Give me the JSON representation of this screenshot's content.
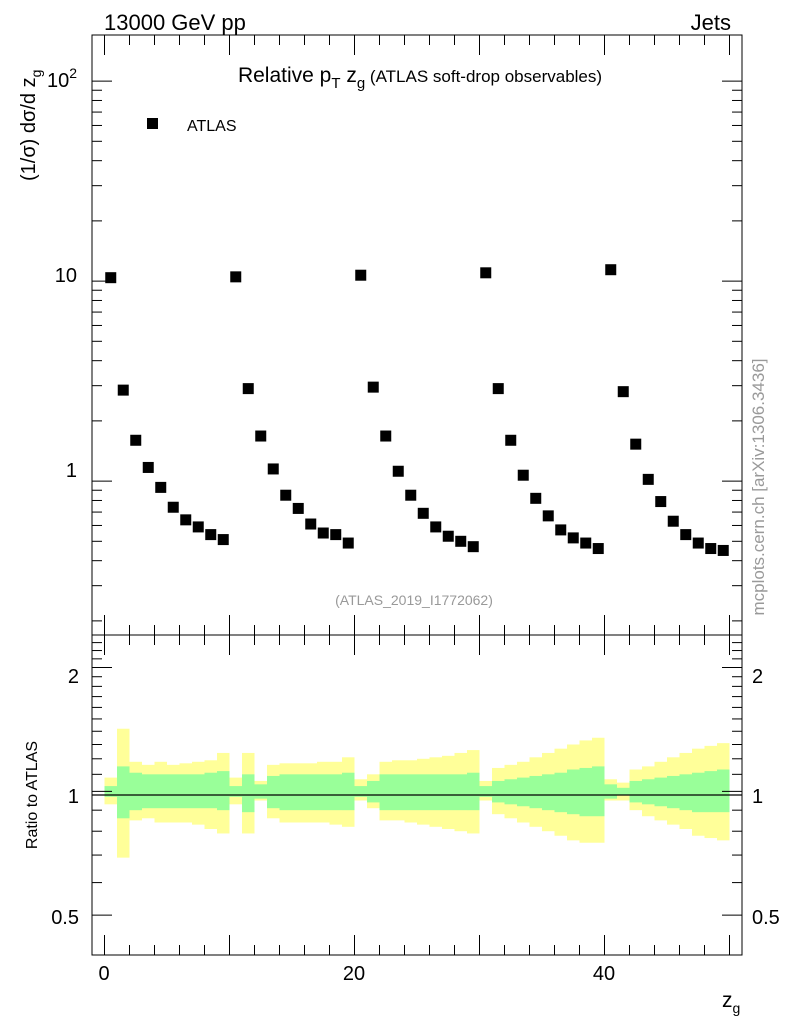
{
  "header": {
    "energy_label": "13000 GeV pp",
    "category_label": "Jets",
    "watermark": "mcplots.cern.ch [arXiv:1306.3436]"
  },
  "main_plot": {
    "title_prefix": "Relative p",
    "title_sub_1": "T",
    "title_mid": " z",
    "title_sub_2": "g",
    "title_suffix": " (ATLAS soft-drop observables)",
    "ylabel_main": "(1/σ) dσ/d z",
    "ylabel_sub": "g",
    "analysis_id": "(ATLAS_2019_I1772062)",
    "legend_label": "ATLAS",
    "ytick_labels": [
      "1",
      "10"
    ],
    "ytick_top_base": "10",
    "ytick_top_exp": "2"
  },
  "ratio_plot": {
    "ylabel": "Ratio to ATLAS",
    "ytick_labels": [
      "0.5",
      "1",
      "2"
    ],
    "xtick_labels": [
      "0",
      "20",
      "40"
    ],
    "xlabel_main": "z",
    "xlabel_sub": "g"
  },
  "colors": {
    "marker": "#000000",
    "band_inner": "#99ff99",
    "band_outer": "#ffff99",
    "line": "#000000"
  },
  "chart_data": [
    {
      "type": "scatter",
      "title": "Relative pT zg (ATLAS soft-drop observables)",
      "xlabel": "zg",
      "ylabel": "(1/σ) dσ/d zg",
      "yscale": "log",
      "xlim": [
        -1,
        51
      ],
      "ylim": [
        0.17,
        170
      ],
      "series": [
        {
          "name": "ATLAS",
          "x": [
            0.5,
            1.5,
            2.5,
            3.5,
            4.5,
            5.5,
            6.5,
            7.5,
            8.5,
            9.5,
            10.5,
            11.5,
            12.5,
            13.5,
            14.5,
            15.5,
            16.5,
            17.5,
            18.5,
            19.5,
            20.5,
            21.5,
            22.5,
            23.5,
            24.5,
            25.5,
            26.5,
            27.5,
            28.5,
            29.5,
            30.5,
            31.5,
            32.5,
            33.5,
            34.5,
            35.5,
            36.5,
            37.5,
            38.5,
            39.5,
            40.5,
            41.5,
            42.5,
            43.5,
            44.5,
            45.5,
            46.5,
            47.5,
            48.5,
            49.5
          ],
          "y": [
            10.4,
            2.85,
            1.6,
            1.17,
            0.93,
            0.74,
            0.64,
            0.59,
            0.54,
            0.51,
            10.5,
            2.9,
            1.68,
            1.15,
            0.85,
            0.73,
            0.61,
            0.55,
            0.54,
            0.49,
            10.7,
            2.95,
            1.68,
            1.12,
            0.85,
            0.69,
            0.59,
            0.53,
            0.5,
            0.47,
            11.0,
            2.9,
            1.6,
            1.07,
            0.82,
            0.67,
            0.57,
            0.52,
            0.49,
            0.46,
            11.4,
            2.8,
            1.53,
            1.02,
            0.79,
            0.63,
            0.54,
            0.49,
            0.46,
            0.45
          ]
        }
      ]
    },
    {
      "type": "area",
      "title": "Ratio to ATLAS",
      "xlabel": "zg",
      "ylabel": "Ratio to ATLAS",
      "yscale": "log",
      "xlim": [
        -1,
        51
      ],
      "ylim": [
        0.4,
        2.4
      ],
      "reference_line": 1,
      "series": [
        {
          "name": "Stat. uncertainty (green)",
          "x": [
            0.5,
            1.5,
            2.5,
            3.5,
            4.5,
            5.5,
            6.5,
            7.5,
            8.5,
            9.5,
            10.5,
            11.5,
            12.5,
            13.5,
            14.5,
            15.5,
            16.5,
            17.5,
            18.5,
            19.5,
            20.5,
            21.5,
            22.5,
            23.5,
            24.5,
            25.5,
            26.5,
            27.5,
            28.5,
            29.5,
            30.5,
            31.5,
            32.5,
            33.5,
            34.5,
            35.5,
            36.5,
            37.5,
            38.5,
            39.5,
            40.5,
            41.5,
            42.5,
            43.5,
            44.5,
            45.5,
            46.5,
            47.5,
            48.5,
            49.5
          ],
          "lower": [
            0.97,
            0.86,
            0.9,
            0.91,
            0.91,
            0.91,
            0.91,
            0.91,
            0.91,
            0.9,
            0.97,
            0.89,
            0.96,
            0.91,
            0.9,
            0.9,
            0.9,
            0.9,
            0.9,
            0.9,
            0.97,
            0.94,
            0.9,
            0.9,
            0.9,
            0.9,
            0.9,
            0.9,
            0.9,
            0.9,
            0.97,
            0.94,
            0.93,
            0.92,
            0.91,
            0.9,
            0.89,
            0.88,
            0.87,
            0.87,
            0.96,
            0.98,
            0.94,
            0.93,
            0.92,
            0.91,
            0.9,
            0.89,
            0.89,
            0.89
          ],
          "upper": [
            1.03,
            1.15,
            1.11,
            1.1,
            1.1,
            1.1,
            1.1,
            1.1,
            1.11,
            1.12,
            1.03,
            1.1,
            1.04,
            1.09,
            1.1,
            1.1,
            1.1,
            1.1,
            1.1,
            1.11,
            1.03,
            1.06,
            1.1,
            1.1,
            1.1,
            1.1,
            1.1,
            1.1,
            1.1,
            1.11,
            1.03,
            1.06,
            1.07,
            1.08,
            1.09,
            1.1,
            1.11,
            1.13,
            1.14,
            1.15,
            1.04,
            1.02,
            1.06,
            1.07,
            1.08,
            1.09,
            1.1,
            1.11,
            1.12,
            1.13
          ]
        },
        {
          "name": "Total uncertainty (yellow)",
          "x": [
            0.5,
            1.5,
            2.5,
            3.5,
            4.5,
            5.5,
            6.5,
            7.5,
            8.5,
            9.5,
            10.5,
            11.5,
            12.5,
            13.5,
            14.5,
            15.5,
            16.5,
            17.5,
            18.5,
            19.5,
            20.5,
            21.5,
            22.5,
            23.5,
            24.5,
            25.5,
            26.5,
            27.5,
            28.5,
            29.5,
            30.5,
            31.5,
            32.5,
            33.5,
            34.5,
            35.5,
            36.5,
            37.5,
            38.5,
            39.5,
            40.5,
            41.5,
            42.5,
            43.5,
            44.5,
            45.5,
            46.5,
            47.5,
            48.5,
            49.5
          ],
          "lower": [
            0.93,
            0.69,
            0.85,
            0.86,
            0.84,
            0.84,
            0.84,
            0.83,
            0.81,
            0.79,
            0.93,
            0.79,
            0.95,
            0.86,
            0.84,
            0.84,
            0.84,
            0.84,
            0.83,
            0.82,
            0.95,
            0.91,
            0.85,
            0.85,
            0.84,
            0.83,
            0.82,
            0.81,
            0.8,
            0.79,
            0.95,
            0.88,
            0.86,
            0.84,
            0.82,
            0.8,
            0.78,
            0.76,
            0.75,
            0.75,
            0.95,
            0.95,
            0.9,
            0.87,
            0.85,
            0.83,
            0.81,
            0.78,
            0.77,
            0.76
          ],
          "upper": [
            1.08,
            1.42,
            1.18,
            1.16,
            1.18,
            1.16,
            1.17,
            1.18,
            1.19,
            1.24,
            1.08,
            1.24,
            1.06,
            1.16,
            1.17,
            1.17,
            1.17,
            1.18,
            1.18,
            1.21,
            1.07,
            1.1,
            1.18,
            1.19,
            1.19,
            1.2,
            1.21,
            1.22,
            1.24,
            1.26,
            1.06,
            1.14,
            1.16,
            1.18,
            1.21,
            1.24,
            1.27,
            1.3,
            1.33,
            1.35,
            1.07,
            1.05,
            1.13,
            1.15,
            1.18,
            1.21,
            1.24,
            1.27,
            1.29,
            1.31
          ]
        }
      ]
    }
  ]
}
